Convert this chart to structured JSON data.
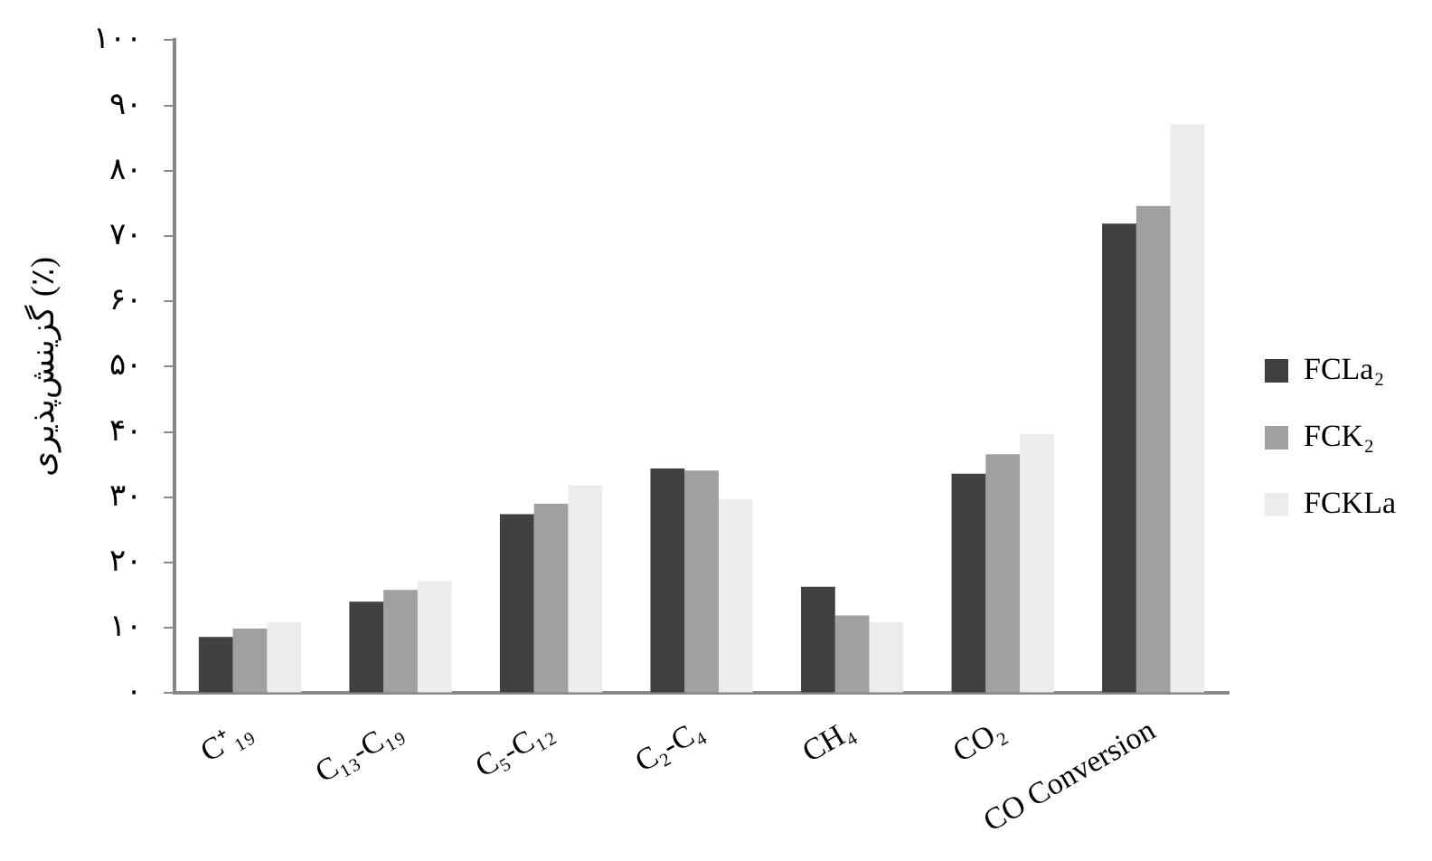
{
  "chart_data": {
    "type": "bar",
    "ylabel": "گزینش‌پذیری (٪)",
    "categories": [
      "C⁺₁₉",
      "C₁₃-C₁₉",
      "C₅-C₁₂",
      "C₂-C₄",
      "CH₄",
      "CO₂",
      "CO Conversion"
    ],
    "series": [
      {
        "name": "FCLa₂",
        "color": "#404040",
        "values": [
          8.6,
          14.0,
          27.4,
          34.4,
          16.3,
          33.6,
          71.9
        ]
      },
      {
        "name": "FCK₂",
        "color": "#a0a0a0",
        "values": [
          9.9,
          15.8,
          29.0,
          34.1,
          11.9,
          36.6,
          74.6
        ]
      },
      {
        "name": "FCKLa",
        "color": "#ececec",
        "values": [
          10.9,
          17.2,
          31.8,
          29.7,
          10.9,
          39.7,
          87.1
        ]
      }
    ],
    "ylim": [
      0,
      100
    ],
    "yticks": [
      {
        "value": 0,
        "label": "۰"
      },
      {
        "value": 10,
        "label": "۱۰"
      },
      {
        "value": 20,
        "label": "۲۰"
      },
      {
        "value": 30,
        "label": "۳۰"
      },
      {
        "value": 40,
        "label": "۴۰"
      },
      {
        "value": 50,
        "label": "۵۰"
      },
      {
        "value": 60,
        "label": "۶۰"
      },
      {
        "value": 70,
        "label": "۷۰"
      },
      {
        "value": 80,
        "label": "۸۰"
      },
      {
        "value": 90,
        "label": "۹۰"
      },
      {
        "value": 100,
        "label": "۱۰۰"
      }
    ],
    "grid": false,
    "legend": "right"
  }
}
